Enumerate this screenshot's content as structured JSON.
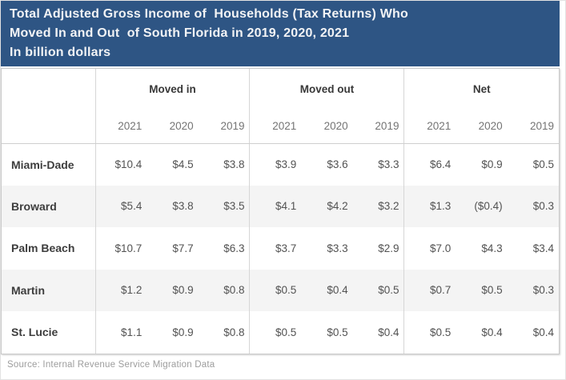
{
  "title": {
    "lines": [
      "Total Adjusted Gross Income of  Households (Tax Returns) Who",
      "Moved In and Out  of South Florida in 2019, 2020, 2021",
      "In billion dollars"
    ]
  },
  "table": {
    "groups": [
      {
        "label": "Moved in"
      },
      {
        "label": "Moved out"
      },
      {
        "label": "Net"
      }
    ],
    "years": [
      "2021",
      "2020",
      "2019"
    ],
    "rows": [
      {
        "label": "Miami-Dade",
        "cells": [
          "$10.4",
          "$4.5",
          "$3.8",
          "$3.9",
          "$3.6",
          "$3.3",
          "$6.4",
          "$0.9",
          "$0.5"
        ]
      },
      {
        "label": "Broward",
        "cells": [
          "$5.4",
          "$3.8",
          "$3.5",
          "$4.1",
          "$4.2",
          "$3.2",
          "$1.3",
          "($0.4)",
          "$0.3"
        ]
      },
      {
        "label": "Palm Beach",
        "cells": [
          "$10.7",
          "$7.7",
          "$6.3",
          "$3.7",
          "$3.3",
          "$2.9",
          "$7.0",
          "$4.3",
          "$3.4"
        ]
      },
      {
        "label": "Martin",
        "cells": [
          "$1.2",
          "$0.9",
          "$0.8",
          "$0.5",
          "$0.4",
          "$0.5",
          "$0.7",
          "$0.5",
          "$0.3"
        ]
      },
      {
        "label": "St. Lucie",
        "cells": [
          "$1.1",
          "$0.9",
          "$0.8",
          "$0.5",
          "$0.5",
          "$0.4",
          "$0.5",
          "$0.4",
          "$0.4"
        ]
      }
    ]
  },
  "source": "Source: Internal Revenue Service Migration Data",
  "colors": {
    "title_bg": "#2e5584",
    "title_text": "#f2f3f5",
    "stripe": "#f4f4f4",
    "divider": "#d6d6d6",
    "card_border": "#c9c9c9",
    "value_text": "#525252",
    "year_text": "#747474",
    "source_text": "#9d9d9d"
  },
  "chart_data": {
    "type": "table",
    "title": "Total Adjusted Gross Income of Households (Tax Returns) Who Moved In and Out of South Florida in 2019, 2020, 2021",
    "subtitle": "In billion dollars",
    "row_header": [
      "Miami-Dade",
      "Broward",
      "Palm Beach",
      "Martin",
      "St. Lucie"
    ],
    "column_groups": [
      "Moved in",
      "Moved out",
      "Net"
    ],
    "years": [
      2021,
      2020,
      2019
    ],
    "series": [
      {
        "name": "Moved in",
        "values": [
          [
            10.4,
            4.5,
            3.8
          ],
          [
            5.4,
            3.8,
            3.5
          ],
          [
            10.7,
            7.7,
            6.3
          ],
          [
            1.2,
            0.9,
            0.8
          ],
          [
            1.1,
            0.9,
            0.8
          ]
        ]
      },
      {
        "name": "Moved out",
        "values": [
          [
            3.9,
            3.6,
            3.3
          ],
          [
            4.1,
            4.2,
            3.2
          ],
          [
            3.7,
            3.3,
            2.9
          ],
          [
            0.5,
            0.4,
            0.5
          ],
          [
            0.5,
            0.5,
            0.4
          ]
        ]
      },
      {
        "name": "Net",
        "values": [
          [
            6.4,
            0.9,
            0.5
          ],
          [
            1.3,
            -0.4,
            0.3
          ],
          [
            7.0,
            4.3,
            3.4
          ],
          [
            0.7,
            0.5,
            0.3
          ],
          [
            0.5,
            0.4,
            0.4
          ]
        ]
      }
    ],
    "units": "billion USD",
    "source": "Source: Internal Revenue Service Migration Data"
  }
}
